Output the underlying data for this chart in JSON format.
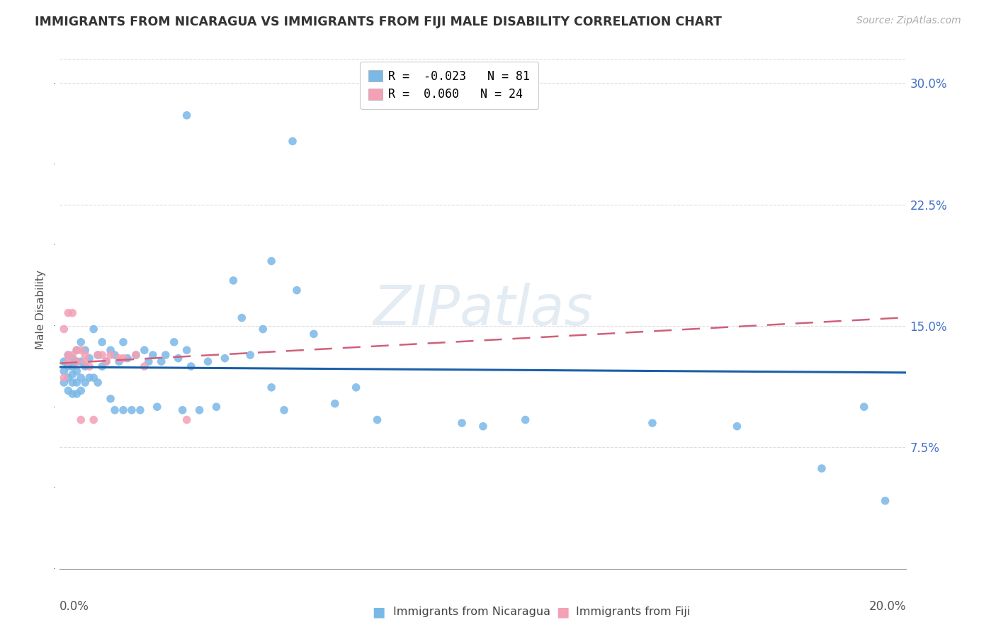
{
  "title": "IMMIGRANTS FROM NICARAGUA VS IMMIGRANTS FROM FIJI MALE DISABILITY CORRELATION CHART",
  "source": "Source: ZipAtlas.com",
  "ylabel": "Male Disability",
  "right_yticks": [
    0.0,
    0.075,
    0.15,
    0.225,
    0.3
  ],
  "right_yticklabels": [
    "",
    "7.5%",
    "15.0%",
    "22.5%",
    "30.0%"
  ],
  "xmin": 0.0,
  "xmax": 0.2,
  "ymin": 0.0,
  "ymax": 0.32,
  "nicaragua_R": -0.023,
  "nicaragua_N": 81,
  "fiji_R": 0.06,
  "fiji_N": 24,
  "nicaragua_color": "#7ab8e8",
  "fiji_color": "#f4a0b5",
  "nicaragua_line_color": "#1a5fa8",
  "fiji_line_color": "#d0607a",
  "nicaragua_x": [
    0.001,
    0.001,
    0.001,
    0.002,
    0.002,
    0.002,
    0.002,
    0.003,
    0.003,
    0.003,
    0.003,
    0.003,
    0.004,
    0.004,
    0.004,
    0.004,
    0.004,
    0.005,
    0.005,
    0.005,
    0.005,
    0.006,
    0.006,
    0.006,
    0.007,
    0.007,
    0.008,
    0.008,
    0.009,
    0.009,
    0.01,
    0.01,
    0.011,
    0.012,
    0.012,
    0.013,
    0.013,
    0.014,
    0.015,
    0.015,
    0.016,
    0.017,
    0.018,
    0.019,
    0.02,
    0.021,
    0.022,
    0.023,
    0.024,
    0.025,
    0.027,
    0.028,
    0.029,
    0.03,
    0.031,
    0.033,
    0.035,
    0.037,
    0.039,
    0.041,
    0.043,
    0.045,
    0.048,
    0.05,
    0.053,
    0.056,
    0.06,
    0.065,
    0.07,
    0.075,
    0.03,
    0.05,
    0.055,
    0.095,
    0.1,
    0.11,
    0.14,
    0.16,
    0.18,
    0.19,
    0.195
  ],
  "nicaragua_y": [
    0.128,
    0.122,
    0.115,
    0.132,
    0.125,
    0.118,
    0.11,
    0.13,
    0.125,
    0.12,
    0.115,
    0.108,
    0.135,
    0.128,
    0.122,
    0.115,
    0.108,
    0.14,
    0.128,
    0.118,
    0.11,
    0.135,
    0.125,
    0.115,
    0.13,
    0.118,
    0.148,
    0.118,
    0.132,
    0.115,
    0.14,
    0.125,
    0.128,
    0.135,
    0.105,
    0.132,
    0.098,
    0.128,
    0.14,
    0.098,
    0.13,
    0.098,
    0.132,
    0.098,
    0.135,
    0.128,
    0.132,
    0.1,
    0.128,
    0.132,
    0.14,
    0.13,
    0.098,
    0.135,
    0.125,
    0.098,
    0.128,
    0.1,
    0.13,
    0.178,
    0.155,
    0.132,
    0.148,
    0.112,
    0.098,
    0.172,
    0.145,
    0.102,
    0.112,
    0.092,
    0.28,
    0.19,
    0.264,
    0.09,
    0.088,
    0.092,
    0.09,
    0.088,
    0.062,
    0.1,
    0.042
  ],
  "fiji_x": [
    0.001,
    0.001,
    0.002,
    0.002,
    0.002,
    0.003,
    0.003,
    0.004,
    0.004,
    0.005,
    0.005,
    0.006,
    0.006,
    0.007,
    0.008,
    0.009,
    0.01,
    0.011,
    0.012,
    0.014,
    0.015,
    0.018,
    0.02,
    0.03
  ],
  "fiji_y": [
    0.148,
    0.118,
    0.158,
    0.132,
    0.128,
    0.158,
    0.132,
    0.135,
    0.128,
    0.135,
    0.092,
    0.132,
    0.128,
    0.125,
    0.092,
    0.132,
    0.132,
    0.128,
    0.132,
    0.13,
    0.13,
    0.132,
    0.125,
    0.092
  ],
  "watermark": "ZIPatlas",
  "grid_color": "#dddddd",
  "background_color": "#ffffff",
  "title_fontsize": 12.5,
  "source_fontsize": 10,
  "axis_label_fontsize": 11,
  "tick_fontsize": 12,
  "legend_fontsize": 12
}
